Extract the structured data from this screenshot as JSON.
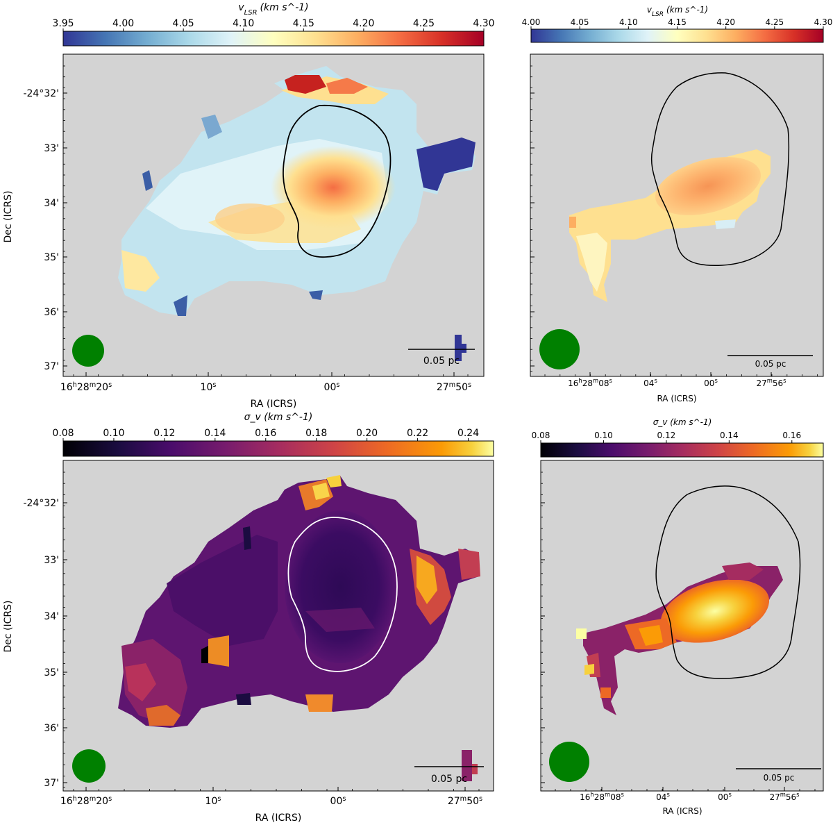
{
  "figure": {
    "description_labels": {
      "ra_axis": "RA (ICRS)",
      "dec_axis": "Dec (ICRS)"
    }
  },
  "colors": {
    "panel_background": "#d3d3d3",
    "beam": "#008000",
    "contour_dark": "#000000",
    "contour_light": "#ffffff"
  },
  "chart_data": [
    {
      "id": "vlsr_left",
      "type": "heatmap",
      "quantity": "v_LSR",
      "colorbar_label": "v_LSR (km s^-1)",
      "colorbar_label_main": "v",
      "colorbar_label_sub": "LSR",
      "colorbar_label_units": "(km s^-1)",
      "colormap": "RdYlBu_r",
      "vmin": 3.95,
      "vmax": 4.3,
      "colorbar_ticks": [
        "3.95",
        "4.00",
        "4.05",
        "4.10",
        "4.15",
        "4.20",
        "4.25",
        "4.30"
      ],
      "xlabel": "RA (ICRS)",
      "ylabel": "Dec (ICRS)",
      "x_ticks": [
        "16h28m20s",
        "10s",
        "00s",
        "27m50s"
      ],
      "y_ticks": [
        "-24°32'",
        "33'",
        "34'",
        "35'",
        "36'",
        "37'"
      ],
      "scale_bar": "0.05 pc",
      "contour": "present (black)"
    },
    {
      "id": "vlsr_right",
      "type": "heatmap",
      "quantity": "v_LSR",
      "colorbar_label": "v_LSR (km s^-1)",
      "colormap": "RdYlBu_r",
      "vmin": 4.0,
      "vmax": 4.3,
      "colorbar_ticks": [
        "4.00",
        "4.05",
        "4.10",
        "4.15",
        "4.20",
        "4.25",
        "4.30"
      ],
      "xlabel": "RA (ICRS)",
      "x_ticks": [
        "16h28m08s",
        "04s",
        "00s",
        "27m56s"
      ],
      "scale_bar": "0.05 pc",
      "contour": "present (black)"
    },
    {
      "id": "sigma_left",
      "type": "heatmap",
      "quantity": "sigma_v",
      "colorbar_label": "σ_v (km s^-1)",
      "colormap": "inferno",
      "vmin": 0.08,
      "vmax": 0.25,
      "colorbar_ticks": [
        "0.08",
        "0.10",
        "0.12",
        "0.14",
        "0.16",
        "0.18",
        "0.20",
        "0.22",
        "0.24"
      ],
      "xlabel": "RA (ICRS)",
      "ylabel": "Dec (ICRS)",
      "x_ticks": [
        "16h28m20s",
        "10s",
        "00s",
        "27m50s"
      ],
      "y_ticks": [
        "-24°32'",
        "33'",
        "34'",
        "35'",
        "36'",
        "37'"
      ],
      "scale_bar": "0.05 pc",
      "contour": "present (white)"
    },
    {
      "id": "sigma_right",
      "type": "heatmap",
      "quantity": "sigma_v",
      "colorbar_label": "σ_v (km s^-1)",
      "colormap": "inferno",
      "vmin": 0.08,
      "vmax": 0.17,
      "colorbar_ticks": [
        "0.08",
        "0.10",
        "0.12",
        "0.14",
        "0.16"
      ],
      "xlabel": "RA (ICRS)",
      "x_ticks": [
        "16h28m08s",
        "04s",
        "00s",
        "27m56s"
      ],
      "scale_bar": "0.05 pc",
      "contour": "present (black)"
    }
  ]
}
